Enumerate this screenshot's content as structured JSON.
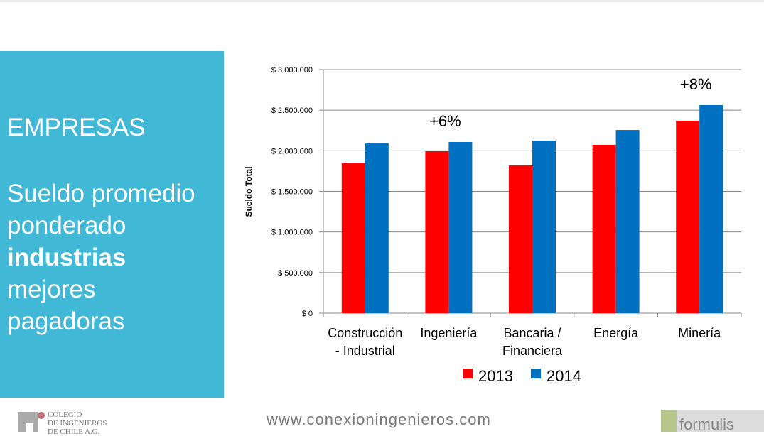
{
  "slide": {
    "heading": "EMPRESAS",
    "subtitle_line1": "Sueldo promedio",
    "subtitle_line2": "ponderado",
    "subtitle_bold": "industrias",
    "subtitle_line4": "mejores",
    "subtitle_line5": "pagadoras"
  },
  "footer": {
    "url": "www.conexioningenieros.com",
    "logo_left": "COLEGIO DE INGENIEROS DE CHILE A.G.",
    "logo_right": "formulis"
  },
  "colors": {
    "panel": "#41b8d5",
    "series_2013": "#ff0000",
    "series_2014": "#0070c0"
  },
  "chart_data": {
    "type": "bar",
    "title": "",
    "xlabel": "",
    "ylabel": "Sueldo Total",
    "ylim": [
      0,
      3000000
    ],
    "yticks": [
      0,
      500000,
      1000000,
      1500000,
      2000000,
      2500000,
      3000000
    ],
    "ytick_labels": [
      "$ 0",
      "$ 500.000",
      "$ 1.000.000",
      "$ 1.500.000",
      "$ 2.000.000",
      "$ 2.500.000",
      "$ 3.000.000"
    ],
    "grid": true,
    "legend_position": "bottom",
    "categories": [
      [
        "Construcción",
        "- Industrial"
      ],
      [
        "Ingeniería"
      ],
      [
        "Bancaria /",
        "Financiera"
      ],
      [
        "Energía"
      ],
      [
        "Minería"
      ]
    ],
    "series": [
      {
        "name": "2013",
        "color": "#ff0000",
        "values": [
          1845000,
          1994000,
          1819000,
          2073000,
          2370000
        ]
      },
      {
        "name": "2014",
        "color": "#0070c0",
        "values": [
          2090000,
          2108000,
          2125000,
          2256000,
          2563000
        ]
      }
    ],
    "annotations": [
      {
        "text": "+6%",
        "category": 1
      },
      {
        "text": "+8%",
        "category": 4
      }
    ]
  }
}
